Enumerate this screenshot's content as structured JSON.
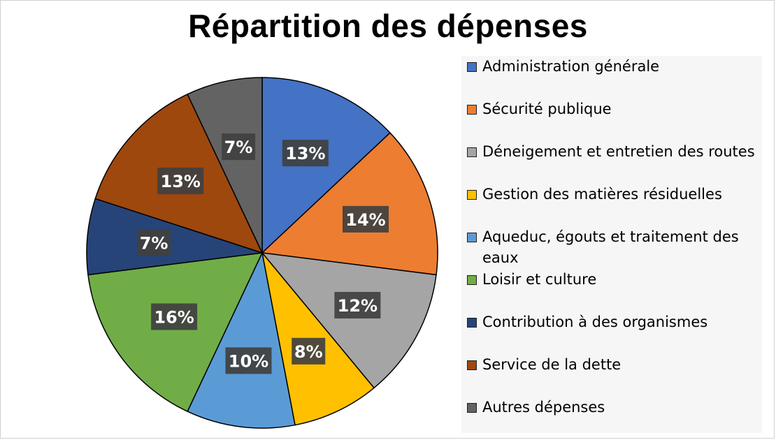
{
  "chart_data": {
    "type": "pie",
    "title": "Répartition des dépenses",
    "start_angle_deg": 0,
    "direction": "clockwise",
    "legend_position": "right",
    "slices": [
      {
        "label": "Administration générale",
        "value": 13,
        "display": "13%",
        "color": "#4472C4"
      },
      {
        "label": "Sécurité publique",
        "value": 14,
        "display": "14%",
        "color": "#ED7D31"
      },
      {
        "label": "Déneigement et entretien des routes",
        "value": 12,
        "display": "12%",
        "color": "#A5A5A5"
      },
      {
        "label": "Gestion des matières résiduelles",
        "value": 8,
        "display": "8%",
        "color": "#FFC000"
      },
      {
        "label": "Aqueduc, égouts et traitement des eaux",
        "value": 10,
        "display": "10%",
        "color": "#5B9BD5"
      },
      {
        "label": "Loisir et culture",
        "value": 16,
        "display": "16%",
        "color": "#70AD47"
      },
      {
        "label": "Contribution à des organismes",
        "value": 7,
        "display": "7%",
        "color": "#264478"
      },
      {
        "label": "Service de la dette",
        "value": 13,
        "display": "13%",
        "color": "#9E480E"
      },
      {
        "label": "Autres dépenses",
        "value": 7,
        "display": "7%",
        "color": "#636363"
      }
    ]
  }
}
